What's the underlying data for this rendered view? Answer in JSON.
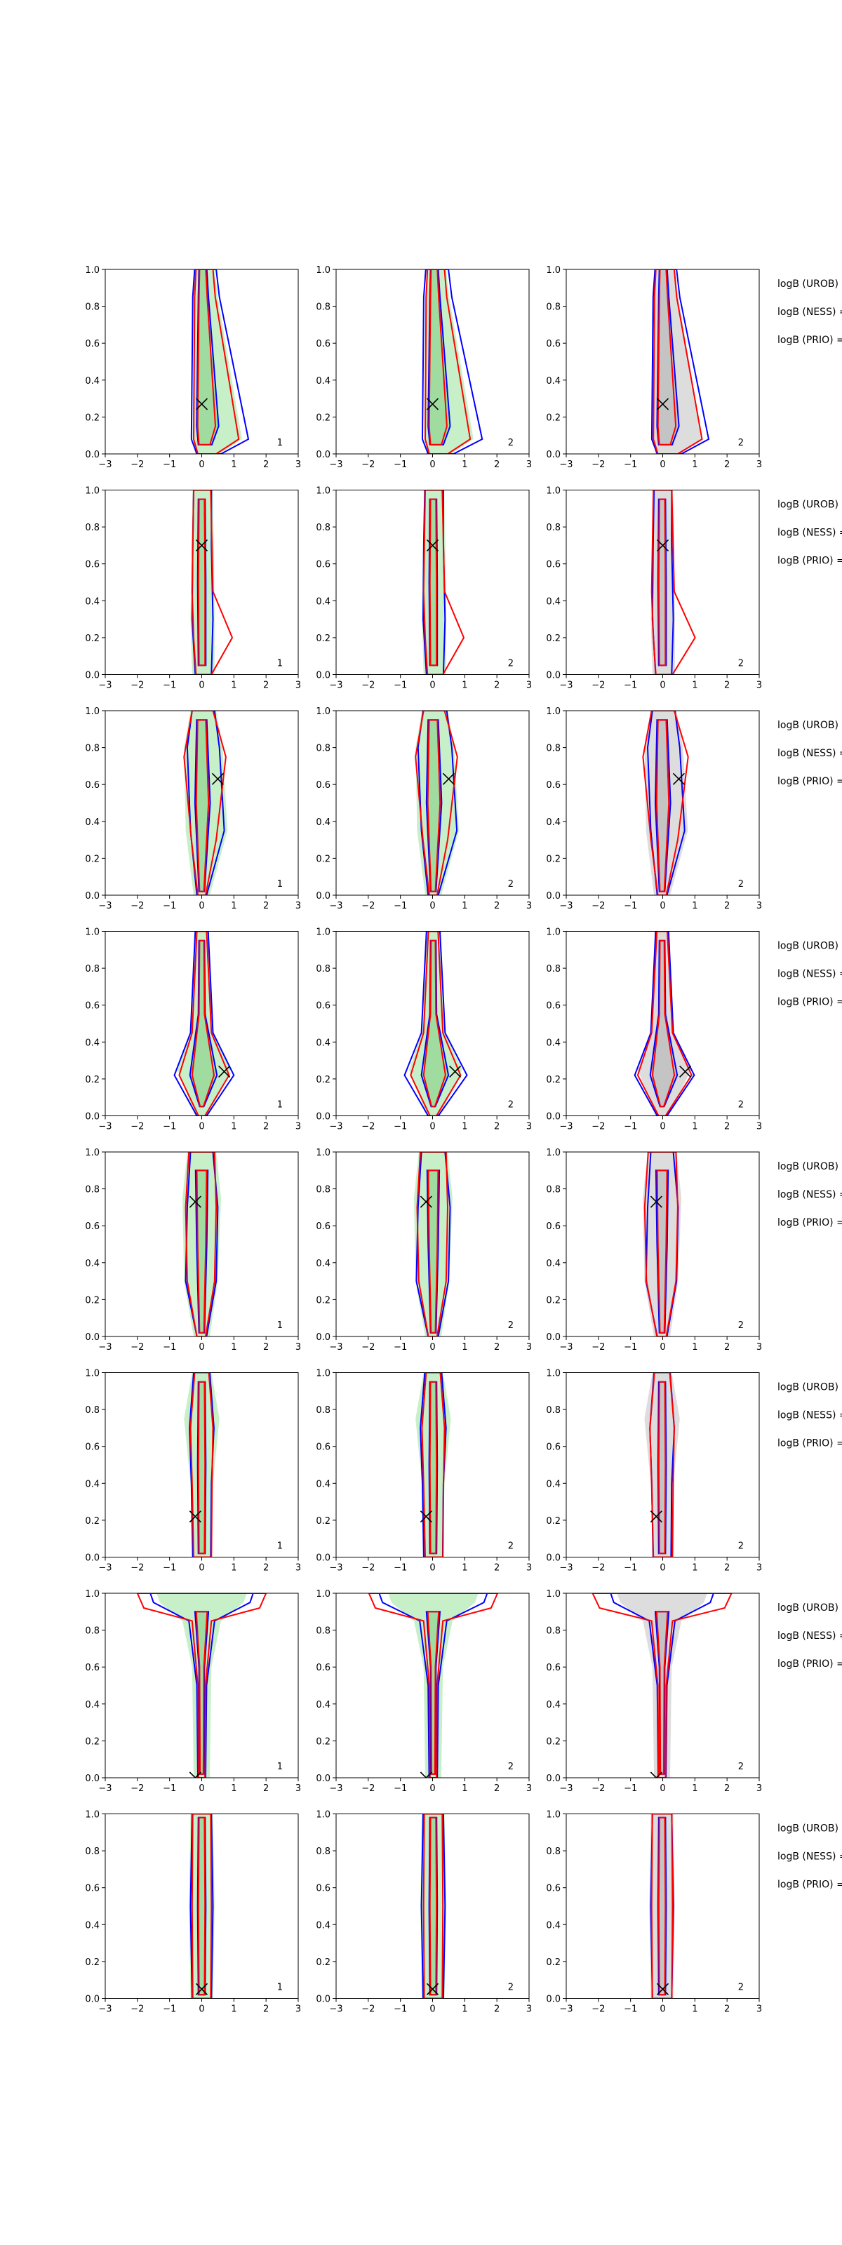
{
  "colors": {
    "contour_a": "#0000ff",
    "contour_b": "#ff0000",
    "fill_green": "#c8f0c8",
    "fill_green_dark": "#a0dca0",
    "fill_grey": "#dddddd",
    "fill_grey_dark": "#c4c4c4",
    "marker": "#000000"
  },
  "chart_data": {
    "type": "contour",
    "grid": {
      "rows": 8,
      "columns": 3
    },
    "xlim": [
      -3,
      3
    ],
    "ylim": [
      0,
      1
    ],
    "xticks": [
      "−3",
      "−2",
      "−1",
      "0",
      "1",
      "2",
      "3"
    ],
    "yticks": [
      "0.0",
      "0.2",
      "0.4",
      "0.6",
      "0.8",
      "1.0"
    ],
    "marker_symbol": "x",
    "column_fill": [
      "green",
      "green",
      "grey"
    ],
    "corner_labels": [
      "1",
      "2",
      "2"
    ],
    "row_annotations": [
      "logB (UROB) =",
      "logB (NESS) =",
      "logB (PRIO) ="
    ],
    "markers": [
      {
        "row": 1,
        "x": 0.0,
        "y": 0.27
      },
      {
        "row": 2,
        "x": 0.0,
        "y": 0.7
      },
      {
        "row": 3,
        "x": 0.5,
        "y": 0.63
      },
      {
        "row": 4,
        "x": 0.7,
        "y": 0.24
      },
      {
        "row": 5,
        "x": -0.2,
        "y": 0.73
      },
      {
        "row": 6,
        "x": -0.2,
        "y": 0.22
      },
      {
        "row": 7,
        "x": -0.2,
        "y": 0.0
      },
      {
        "row": 8,
        "x": 0.0,
        "y": 0.05
      }
    ],
    "rows": [
      {
        "a": [
          [
            0.0,
            0.15,
            0.6
          ],
          [
            0.08,
            0.32,
            1.45
          ],
          [
            0.85,
            0.28,
            0.55
          ],
          [
            1.0,
            0.22,
            0.45
          ]
        ],
        "b": [
          [
            0.0,
            0.12,
            0.45
          ],
          [
            0.08,
            0.25,
            1.15
          ],
          [
            0.85,
            0.22,
            0.42
          ],
          [
            1.0,
            0.18,
            0.35
          ]
        ],
        "fo": [
          [
            0.0,
            0.2,
            0.55
          ],
          [
            0.08,
            0.28,
            1.25
          ],
          [
            0.85,
            0.25,
            0.5
          ],
          [
            1.0,
            0.2,
            0.4
          ]
        ],
        "fi": [
          [
            0.05,
            0.1,
            0.3
          ],
          [
            0.15,
            0.15,
            0.5
          ],
          [
            0.85,
            0.1,
            0.2
          ],
          [
            1.0,
            0.08,
            0.15
          ]
        ]
      },
      {
        "a": [
          [
            0.0,
            0.2,
            0.3
          ],
          [
            0.3,
            0.3,
            0.35
          ],
          [
            0.7,
            0.28,
            0.3
          ],
          [
            1.0,
            0.25,
            0.3
          ]
        ],
        "b": [
          [
            0.0,
            0.18,
            0.3
          ],
          [
            0.2,
            0.25,
            0.95
          ],
          [
            0.45,
            0.3,
            0.35
          ],
          [
            1.0,
            0.25,
            0.28
          ]
        ],
        "fo": [
          [
            0.0,
            0.3,
            0.4
          ],
          [
            0.3,
            0.35,
            0.4
          ],
          [
            0.7,
            0.32,
            0.38
          ],
          [
            1.0,
            0.28,
            0.34
          ]
        ],
        "fi": [
          [
            0.05,
            0.1,
            0.12
          ],
          [
            0.5,
            0.12,
            0.12
          ],
          [
            0.95,
            0.1,
            0.1
          ]
        ]
      },
      {
        "a": [
          [
            0.0,
            0.15,
            0.15
          ],
          [
            0.35,
            0.35,
            0.7
          ],
          [
            0.8,
            0.45,
            0.55
          ],
          [
            1.0,
            0.3,
            0.4
          ]
        ],
        "b": [
          [
            0.0,
            0.12,
            0.12
          ],
          [
            0.3,
            0.32,
            0.45
          ],
          [
            0.75,
            0.55,
            0.75
          ],
          [
            1.0,
            0.3,
            0.35
          ]
        ],
        "fo": [
          [
            0.0,
            0.25,
            0.25
          ],
          [
            0.35,
            0.5,
            0.8
          ],
          [
            0.8,
            0.55,
            0.65
          ],
          [
            1.0,
            0.35,
            0.45
          ]
        ],
        "fi": [
          [
            0.02,
            0.08,
            0.08
          ],
          [
            0.5,
            0.2,
            0.25
          ],
          [
            0.95,
            0.15,
            0.15
          ]
        ]
      },
      {
        "a": [
          [
            0.0,
            0.15,
            0.15
          ],
          [
            0.22,
            0.85,
            1.0
          ],
          [
            0.45,
            0.35,
            0.35
          ],
          [
            1.0,
            0.2,
            0.2
          ]
        ],
        "b": [
          [
            0.0,
            0.1,
            0.1
          ],
          [
            0.22,
            0.7,
            0.85
          ],
          [
            0.45,
            0.3,
            0.3
          ],
          [
            1.0,
            0.15,
            0.15
          ]
        ],
        "fo": [
          [
            0.0,
            0.2,
            0.2
          ],
          [
            0.25,
            0.75,
            0.9
          ],
          [
            0.45,
            0.35,
            0.35
          ],
          [
            1.0,
            0.22,
            0.22
          ]
        ],
        "fi": [
          [
            0.05,
            0.06,
            0.06
          ],
          [
            0.22,
            0.35,
            0.45
          ],
          [
            0.55,
            0.1,
            0.1
          ],
          [
            0.95,
            0.08,
            0.08
          ]
        ]
      },
      {
        "a": [
          [
            0.0,
            0.15,
            0.15
          ],
          [
            0.3,
            0.5,
            0.45
          ],
          [
            0.7,
            0.45,
            0.5
          ],
          [
            1.0,
            0.35,
            0.35
          ]
        ],
        "b": [
          [
            0.0,
            0.15,
            0.12
          ],
          [
            0.3,
            0.45,
            0.4
          ],
          [
            0.7,
            0.5,
            0.45
          ],
          [
            1.0,
            0.4,
            0.4
          ]
        ],
        "fo": [
          [
            0.0,
            0.25,
            0.25
          ],
          [
            0.3,
            0.55,
            0.5
          ],
          [
            0.75,
            0.6,
            0.6
          ],
          [
            1.0,
            0.45,
            0.45
          ]
        ],
        "fi": [
          [
            0.02,
            0.08,
            0.08
          ],
          [
            0.5,
            0.15,
            0.15
          ],
          [
            0.9,
            0.18,
            0.18
          ]
        ]
      },
      {
        "a": [
          [
            0.0,
            0.28,
            0.28
          ],
          [
            0.4,
            0.32,
            0.3
          ],
          [
            0.7,
            0.38,
            0.38
          ],
          [
            1.0,
            0.25,
            0.25
          ]
        ],
        "b": [
          [
            0.0,
            0.25,
            0.3
          ],
          [
            0.4,
            0.3,
            0.32
          ],
          [
            0.7,
            0.35,
            0.35
          ],
          [
            1.0,
            0.22,
            0.22
          ]
        ],
        "fo": [
          [
            0.0,
            0.3,
            0.3
          ],
          [
            0.4,
            0.35,
            0.35
          ],
          [
            0.75,
            0.55,
            0.55
          ],
          [
            1.0,
            0.3,
            0.3
          ]
        ],
        "fi": [
          [
            0.02,
            0.1,
            0.1
          ],
          [
            0.5,
            0.12,
            0.12
          ],
          [
            0.95,
            0.1,
            0.1
          ]
        ]
      },
      {
        "a": [
          [
            0.0,
            0.12,
            0.12
          ],
          [
            0.5,
            0.15,
            0.15
          ],
          [
            0.85,
            0.4,
            0.4
          ],
          [
            0.95,
            1.5,
            1.5
          ],
          [
            1.0,
            1.6,
            1.6
          ]
        ],
        "b": [
          [
            0.0,
            0.1,
            0.1
          ],
          [
            0.5,
            0.12,
            0.12
          ],
          [
            0.85,
            0.3,
            0.3
          ],
          [
            0.92,
            1.8,
            1.8
          ],
          [
            1.0,
            2.0,
            2.0
          ]
        ],
        "fo": [
          [
            0.0,
            0.25,
            0.25
          ],
          [
            0.6,
            0.3,
            0.3
          ],
          [
            0.85,
            0.6,
            0.6
          ],
          [
            0.95,
            1.3,
            1.3
          ],
          [
            1.0,
            1.4,
            1.4
          ]
        ],
        "fi": [
          [
            0.02,
            0.06,
            0.06
          ],
          [
            0.6,
            0.08,
            0.08
          ],
          [
            0.9,
            0.2,
            0.2
          ]
        ]
      },
      {
        "a": [
          [
            0.0,
            0.3,
            0.3
          ],
          [
            0.5,
            0.35,
            0.35
          ],
          [
            1.0,
            0.3,
            0.3
          ]
        ],
        "b": [
          [
            0.0,
            0.28,
            0.28
          ],
          [
            0.5,
            0.3,
            0.3
          ],
          [
            1.0,
            0.28,
            0.28
          ]
        ],
        "fo": [
          [
            0.0,
            0.35,
            0.35
          ],
          [
            0.5,
            0.4,
            0.4
          ],
          [
            1.0,
            0.35,
            0.35
          ]
        ],
        "fi": [
          [
            0.02,
            0.1,
            0.1
          ],
          [
            0.5,
            0.12,
            0.12
          ],
          [
            0.98,
            0.1,
            0.1
          ]
        ]
      }
    ]
  }
}
